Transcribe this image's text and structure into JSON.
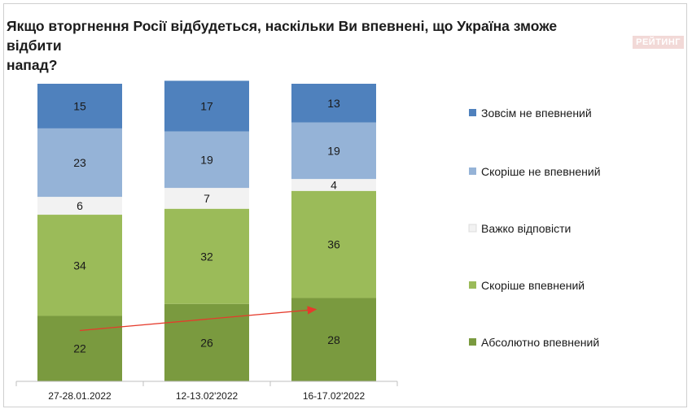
{
  "page": {
    "title_line1": "Якщо вторгнення Росії відбудеться, наскільки Ви впевнені, що Україна зможе відбити",
    "title_line2": "напад?",
    "brand": "РЕЙТИНГ"
  },
  "chart_data": {
    "type": "bar",
    "stacked": true,
    "percent_stacked": true,
    "categories": [
      "27-28.01.2022",
      "12-13.02'2022",
      "16-17.02'2022"
    ],
    "series": [
      {
        "name": "Абсолютно впевнений",
        "color": "#7a9a3f",
        "values": [
          22,
          26,
          28
        ]
      },
      {
        "name": "Скоріше впевнений",
        "color": "#9bbb59",
        "values": [
          34,
          32,
          36
        ]
      },
      {
        "name": "Важко відповісти",
        "color": "#f2f2f2",
        "values": [
          6,
          7,
          4
        ]
      },
      {
        "name": "Скоріше не впевнений",
        "color": "#95b3d7",
        "values": [
          23,
          19,
          19
        ]
      },
      {
        "name": "Зовсім не впевнений",
        "color": "#4f81bd",
        "values": [
          15,
          17,
          13
        ]
      }
    ],
    "legend_order": [
      "Зовсім не впевнений",
      "Скоріше не впевнений",
      "Важко відповісти",
      "Скоріше впевнений",
      "Абсолютно впевнений"
    ],
    "legend_position": "right",
    "annotation": {
      "type": "arrow",
      "color": "#e53b2c",
      "from_category": "27-28.01.2022",
      "to_category": "16-17.02'2022",
      "series": "Абсолютно впевнений"
    },
    "title": "Якщо вторгнення Росії відбудеться, наскільки Ви впевнені, що Україна зможе відбити напад?",
    "xlabel": "",
    "ylabel": "",
    "ylim": [
      0,
      100
    ],
    "grid": false
  }
}
